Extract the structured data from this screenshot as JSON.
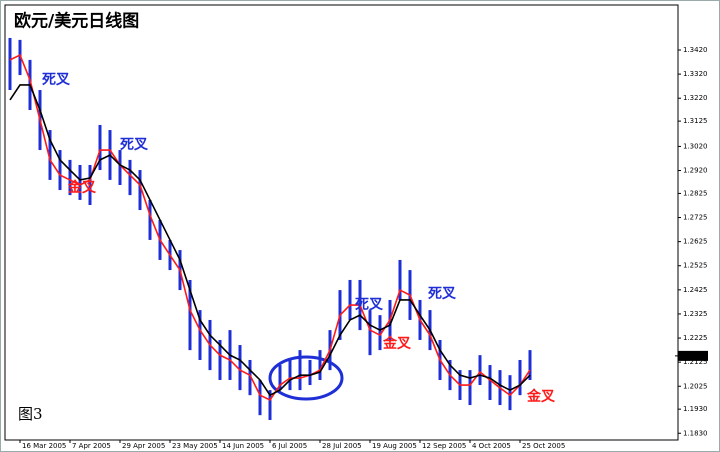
{
  "chart_data": {
    "type": "hilo",
    "title": "欧元/美元日线图",
    "figure_label": "图3",
    "categories": [
      null,
      null,
      null,
      "16 Mar 2005",
      null,
      null,
      null,
      null,
      "7 Apr 2005",
      null,
      null,
      null,
      null,
      "29 Apr 2005",
      null,
      null,
      null,
      null,
      "23 May 2005",
      null,
      null,
      null,
      null,
      "14 Jun 2005",
      null,
      null,
      null,
      null,
      "6 Jul 2005",
      null,
      null,
      null,
      null,
      "28 Jul 2005",
      null,
      null,
      null,
      null,
      "19 Aug 2005",
      null,
      null,
      null,
      null,
      "12 Sep 2005",
      null,
      null,
      null,
      null,
      "4 Oct 2005",
      null,
      null,
      null,
      null,
      "25 Oct 2005"
    ],
    "price_color": "#1f2fd6",
    "highs": [
      1.347,
      1.3462,
      1.3379,
      1.3254,
      1.3088,
      1.3005,
      1.2964,
      1.2943,
      1.2943,
      1.3109,
      1.3088,
      1.3005,
      1.2964,
      1.2922,
      1.2798,
      1.2715,
      1.2632,
      1.259,
      1.2466,
      1.2341,
      1.23,
      1.2217,
      1.2258,
      1.2196,
      1.2134,
      1.2051,
      1.2009,
      1.2113,
      1.2134,
      1.2175,
      1.2134,
      1.2175,
      1.2258,
      1.2424,
      1.2466,
      1.2466,
      1.2341,
      1.232,
      1.2383,
      1.2549,
      1.2507,
      1.2383,
      1.2341,
      1.2217,
      1.2134,
      1.2092,
      1.2092,
      1.2154,
      1.2113,
      1.2092,
      1.2071,
      1.2134,
      1.2175,
      null
    ],
    "lows": [
      1.3254,
      1.3316,
      1.3171,
      1.3005,
      1.2881,
      1.2839,
      1.2818,
      1.2798,
      1.2777,
      1.2922,
      1.2881,
      1.286,
      1.2818,
      1.2756,
      1.2632,
      1.2549,
      1.2507,
      1.2424,
      1.2175,
      1.2134,
      1.2092,
      1.2051,
      1.2051,
      1.2009,
      1.1988,
      1.1905,
      1.1885,
      1.2009,
      1.2009,
      1.2009,
      1.203,
      1.2051,
      1.2092,
      1.2217,
      1.23,
      1.2258,
      1.2154,
      1.2175,
      1.2217,
      1.2383,
      1.23,
      1.2217,
      1.2175,
      1.2051,
      1.2009,
      1.1968,
      1.1947,
      1.203,
      1.1968,
      1.1947,
      1.1926,
      1.1988,
      1.2051,
      null
    ],
    "series": [
      {
        "color": "#ff1a1a",
        "values": [
          1.3379,
          1.3399,
          1.3296,
          1.313,
          1.2964,
          1.2901,
          1.2881,
          1.286,
          1.2881,
          1.3005,
          1.3005,
          1.2943,
          1.2901,
          1.286,
          1.2735,
          1.2632,
          1.2569,
          1.2507,
          1.2341,
          1.2258,
          1.2196,
          1.2154,
          1.2134,
          1.2092,
          1.2071,
          1.1988,
          1.1968,
          1.203,
          1.2059,
          1.2059,
          1.2071,
          1.2092,
          1.2175,
          1.232,
          1.2362,
          1.2362,
          1.2258,
          1.2237,
          1.23,
          1.2424,
          1.2403,
          1.23,
          1.2237,
          1.2134,
          1.2071,
          1.203,
          1.203,
          1.2084,
          1.2051,
          1.2018,
          1.1988,
          1.203,
          1.2092,
          null
        ]
      },
      {
        "color": "#000000",
        "values": [
          1.3213,
          1.3275,
          1.3275,
          1.3171,
          1.3047,
          1.2964,
          1.2922,
          1.2881,
          1.2889,
          1.2964,
          1.2984,
          1.2943,
          1.2922,
          1.2881,
          1.2798,
          1.2715,
          1.2632,
          1.2549,
          1.2424,
          1.23,
          1.2237,
          1.2196,
          1.2154,
          1.2134,
          1.2092,
          1.2051,
          1.1988,
          1.2009,
          1.2051,
          1.2071,
          1.2071,
          1.2084,
          1.2154,
          1.2237,
          1.23,
          1.232,
          1.2279,
          1.2258,
          1.2279,
          1.2383,
          1.2383,
          1.232,
          1.2258,
          1.2175,
          1.2113,
          1.2071,
          1.2059,
          1.2071,
          1.2059,
          1.203,
          1.2009,
          1.203,
          1.2071,
          null
        ]
      }
    ],
    "ylim": [
      1.1802,
      1.3586
    ],
    "yticks": [
      {
        "value": 1.342,
        "label": "1.3420"
      },
      {
        "value": 1.332,
        "label": "1.3320"
      },
      {
        "value": 1.322,
        "label": "1.3220"
      },
      {
        "value": 1.3125,
        "label": "1.3125"
      },
      {
        "value": 1.302,
        "label": "1.3020"
      },
      {
        "value": 1.292,
        "label": "1.2920"
      },
      {
        "value": 1.2825,
        "label": "1.2825"
      },
      {
        "value": 1.2725,
        "label": "1.2725"
      },
      {
        "value": 1.2625,
        "label": "1.2625"
      },
      {
        "value": 1.2525,
        "label": "1.2525"
      },
      {
        "value": 1.2425,
        "label": "1.2425"
      },
      {
        "value": 1.2325,
        "label": "1.2325"
      },
      {
        "value": 1.2225,
        "label": "1.2225"
      },
      {
        "value": 1.2125,
        "label": "1.2125"
      },
      {
        "value": 1.2025,
        "label": "1.2025"
      },
      {
        "value": 1.193,
        "label": "1.1930"
      },
      {
        "value": 1.183,
        "label": "1.1830"
      }
    ],
    "current_price": 1.2151,
    "annotations": [
      {
        "text": "死叉",
        "color": "#1f2fd6"
      },
      {
        "text": "死叉",
        "color": "#1f2fd6"
      },
      {
        "text": "死叉",
        "color": "#1f2fd6"
      },
      {
        "text": "死叉",
        "color": "#1f2fd6"
      },
      {
        "text": "金叉",
        "color": "#ff1a1a"
      },
      {
        "text": "金叉",
        "color": "#ff1a1a"
      },
      {
        "text": "金叉",
        "color": "#ff1a1a"
      }
    ]
  }
}
